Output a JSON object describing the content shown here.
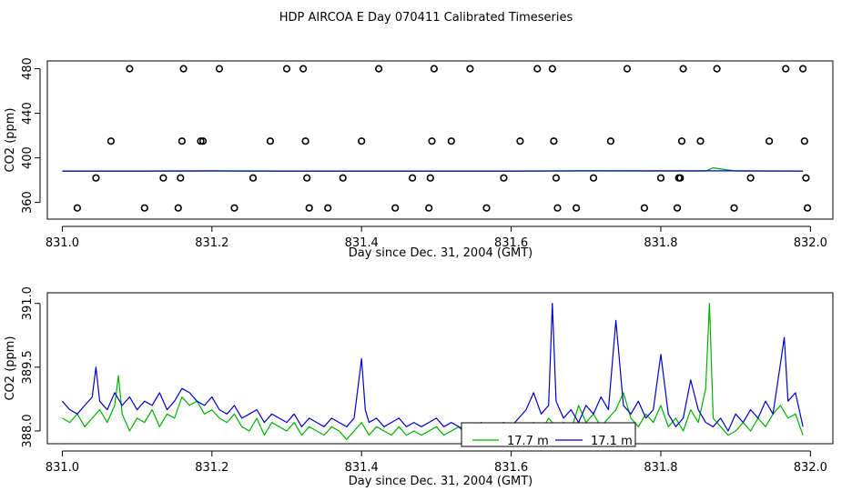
{
  "figure": {
    "title": "HDP AIRCOA E  Day 070411  Calibrated Timeseries"
  },
  "colors": {
    "green": "#00b000",
    "blue": "#0000cc",
    "black": "#000000"
  },
  "chart_data": [
    {
      "type": "scatter",
      "xlabel": "Day since Dec. 31, 2004 (GMT)",
      "ylabel": "CO2 (ppm)",
      "xlim": [
        830.98,
        832.03
      ],
      "ylim": [
        345,
        487
      ],
      "xticks": [
        831.0,
        831.2,
        831.4,
        831.6,
        831.8,
        832.0
      ],
      "xtick_labels": [
        "831.0",
        "831.2",
        "831.4",
        "831.6",
        "831.8",
        "832.0"
      ],
      "yticks": [
        360,
        400,
        440,
        480
      ],
      "ytick_labels": [
        "360",
        "400",
        "440",
        "480"
      ],
      "grid": false,
      "points": [
        [
          831.02,
          355
        ],
        [
          831.045,
          382
        ],
        [
          831.065,
          415
        ],
        [
          831.09,
          480
        ],
        [
          831.11,
          355
        ],
        [
          831.135,
          382
        ],
        [
          831.155,
          355
        ],
        [
          831.158,
          382
        ],
        [
          831.16,
          415
        ],
        [
          831.162,
          480
        ],
        [
          831.185,
          415
        ],
        [
          831.188,
          415
        ],
        [
          831.21,
          480
        ],
        [
          831.23,
          355
        ],
        [
          831.255,
          382
        ],
        [
          831.278,
          415
        ],
        [
          831.3,
          480
        ],
        [
          831.322,
          480
        ],
        [
          831.325,
          415
        ],
        [
          831.327,
          382
        ],
        [
          831.33,
          355
        ],
        [
          831.355,
          355
        ],
        [
          831.375,
          382
        ],
        [
          831.4,
          415
        ],
        [
          831.423,
          480
        ],
        [
          831.445,
          355
        ],
        [
          831.468,
          382
        ],
        [
          831.49,
          355
        ],
        [
          831.492,
          382
        ],
        [
          831.494,
          415
        ],
        [
          831.497,
          480
        ],
        [
          831.52,
          415
        ],
        [
          831.545,
          480
        ],
        [
          831.567,
          355
        ],
        [
          831.59,
          382
        ],
        [
          831.612,
          415
        ],
        [
          831.635,
          480
        ],
        [
          831.655,
          480
        ],
        [
          831.657,
          415
        ],
        [
          831.66,
          382
        ],
        [
          831.662,
          355
        ],
        [
          831.687,
          355
        ],
        [
          831.71,
          382
        ],
        [
          831.733,
          415
        ],
        [
          831.755,
          480
        ],
        [
          831.778,
          355
        ],
        [
          831.8,
          382
        ],
        [
          831.822,
          355
        ],
        [
          831.824,
          382
        ],
        [
          831.826,
          382
        ],
        [
          831.828,
          415
        ],
        [
          831.83,
          480
        ],
        [
          831.853,
          415
        ],
        [
          831.875,
          480
        ],
        [
          831.898,
          355
        ],
        [
          831.92,
          382
        ],
        [
          831.945,
          415
        ],
        [
          831.967,
          480
        ],
        [
          831.99,
          480
        ],
        [
          831.992,
          415
        ],
        [
          831.994,
          382
        ],
        [
          831.996,
          355
        ]
      ],
      "series": [
        {
          "color": "#00b000",
          "x": [
            831.0,
            831.1,
            831.2,
            831.3,
            831.4,
            831.5,
            831.6,
            831.7,
            831.8,
            831.86,
            831.87,
            831.9,
            831.99
          ],
          "values": [
            388.0,
            388.0,
            388.1,
            388.0,
            388.0,
            388.0,
            388.0,
            388.2,
            388.1,
            388.2,
            391.0,
            388.2,
            388.1
          ]
        },
        {
          "color": "#0000cc",
          "x": [
            831.0,
            831.1,
            831.2,
            831.3,
            831.4,
            831.5,
            831.6,
            831.7,
            831.8,
            831.9,
            831.99
          ],
          "values": [
            388.2,
            388.2,
            388.3,
            388.2,
            388.2,
            388.2,
            388.2,
            388.4,
            388.3,
            388.3,
            388.2
          ]
        }
      ]
    },
    {
      "type": "line",
      "xlabel": "Day since Dec. 31, 2004 (GMT)",
      "ylabel": "CO2 (ppm)",
      "xlim": [
        830.98,
        832.03
      ],
      "ylim": [
        387.7,
        391.25
      ],
      "xticks": [
        831.0,
        831.2,
        831.4,
        831.6,
        831.8,
        832.0
      ],
      "xtick_labels": [
        "831.0",
        "831.2",
        "831.4",
        "831.6",
        "831.8",
        "832.0"
      ],
      "yticks": [
        388.0,
        389.5,
        391.0
      ],
      "ytick_labels": [
        "388.0",
        "389.5",
        "391.0"
      ],
      "grid": false,
      "legend_position": "bottom-center",
      "series": [
        {
          "name": "17.7 m",
          "color": "#00b000",
          "x": [
            831.0,
            831.01,
            831.02,
            831.03,
            831.04,
            831.05,
            831.06,
            831.07,
            831.075,
            831.08,
            831.09,
            831.1,
            831.11,
            831.12,
            831.13,
            831.14,
            831.15,
            831.16,
            831.17,
            831.18,
            831.19,
            831.2,
            831.21,
            831.22,
            831.23,
            831.24,
            831.25,
            831.26,
            831.27,
            831.28,
            831.29,
            831.3,
            831.31,
            831.32,
            831.33,
            831.34,
            831.35,
            831.36,
            831.37,
            831.38,
            831.39,
            831.4,
            831.41,
            831.42,
            831.43,
            831.44,
            831.45,
            831.46,
            831.47,
            831.48,
            831.49,
            831.5,
            831.51,
            831.52,
            831.53,
            831.54,
            831.55,
            831.56,
            831.57,
            831.58,
            831.59,
            831.6,
            831.61,
            831.62,
            831.63,
            831.64,
            831.65,
            831.66,
            831.67,
            831.68,
            831.69,
            831.7,
            831.71,
            831.72,
            831.73,
            831.74,
            831.75,
            831.76,
            831.77,
            831.78,
            831.79,
            831.8,
            831.81,
            831.82,
            831.83,
            831.84,
            831.85,
            831.86,
            831.865,
            831.87,
            831.88,
            831.89,
            831.9,
            831.91,
            831.92,
            831.93,
            831.94,
            831.95,
            831.96,
            831.97,
            831.98,
            831.99
          ],
          "values": [
            388.3,
            388.2,
            388.4,
            388.1,
            388.3,
            388.5,
            388.2,
            388.6,
            389.3,
            388.4,
            388.0,
            388.3,
            388.2,
            388.5,
            388.1,
            388.4,
            388.3,
            388.8,
            388.6,
            388.7,
            388.4,
            388.5,
            388.3,
            388.2,
            388.4,
            388.1,
            388.0,
            388.3,
            387.9,
            388.2,
            388.1,
            388.0,
            388.2,
            387.9,
            388.1,
            388.0,
            387.9,
            388.1,
            388.0,
            387.8,
            388.0,
            388.2,
            387.9,
            388.1,
            388.0,
            387.9,
            388.1,
            387.9,
            388.0,
            387.9,
            388.0,
            388.1,
            387.9,
            388.0,
            388.1,
            387.9,
            388.0,
            388.1,
            387.9,
            388.0,
            388.1,
            387.9,
            388.0,
            388.1,
            388.2,
            388.0,
            388.3,
            388.1,
            388.2,
            388.0,
            388.6,
            388.2,
            388.4,
            388.1,
            388.3,
            388.5,
            388.9,
            388.3,
            388.1,
            388.4,
            388.2,
            388.6,
            388.1,
            388.3,
            388.0,
            388.5,
            388.2,
            389.0,
            391.0,
            388.3,
            388.1,
            387.9,
            388.0,
            388.2,
            388.0,
            388.3,
            388.1,
            388.4,
            388.6,
            388.3,
            388.4,
            387.9
          ]
        },
        {
          "name": "17.1 m",
          "color": "#0000cc",
          "x": [
            831.0,
            831.01,
            831.02,
            831.03,
            831.04,
            831.045,
            831.05,
            831.06,
            831.07,
            831.08,
            831.09,
            831.1,
            831.11,
            831.12,
            831.13,
            831.14,
            831.15,
            831.16,
            831.17,
            831.18,
            831.19,
            831.2,
            831.21,
            831.22,
            831.23,
            831.24,
            831.25,
            831.26,
            831.27,
            831.28,
            831.29,
            831.3,
            831.31,
            831.32,
            831.33,
            831.34,
            831.35,
            831.36,
            831.37,
            831.38,
            831.39,
            831.4,
            831.405,
            831.41,
            831.42,
            831.43,
            831.44,
            831.45,
            831.46,
            831.47,
            831.48,
            831.49,
            831.5,
            831.51,
            831.52,
            831.53,
            831.54,
            831.55,
            831.56,
            831.57,
            831.58,
            831.59,
            831.6,
            831.61,
            831.62,
            831.63,
            831.64,
            831.65,
            831.655,
            831.66,
            831.67,
            831.68,
            831.69,
            831.7,
            831.71,
            831.72,
            831.73,
            831.74,
            831.75,
            831.76,
            831.77,
            831.78,
            831.79,
            831.8,
            831.81,
            831.82,
            831.83,
            831.84,
            831.85,
            831.86,
            831.87,
            831.88,
            831.89,
            831.9,
            831.91,
            831.92,
            831.93,
            831.94,
            831.95,
            831.96,
            831.965,
            831.97,
            831.98,
            831.99
          ],
          "values": [
            388.7,
            388.5,
            388.4,
            388.6,
            388.8,
            389.5,
            388.7,
            388.5,
            388.9,
            388.6,
            388.8,
            388.5,
            388.7,
            388.6,
            388.9,
            388.5,
            388.7,
            389.0,
            388.9,
            388.7,
            388.6,
            388.8,
            388.5,
            388.4,
            388.6,
            388.3,
            388.4,
            388.5,
            388.2,
            388.4,
            388.3,
            388.2,
            388.4,
            388.1,
            388.3,
            388.2,
            388.1,
            388.3,
            388.2,
            388.1,
            388.3,
            389.7,
            388.5,
            388.2,
            388.3,
            388.1,
            388.2,
            388.3,
            388.1,
            388.2,
            388.1,
            388.2,
            388.3,
            388.1,
            388.2,
            388.1,
            388.0,
            388.1,
            388.2,
            388.0,
            388.1,
            388.2,
            388.1,
            388.3,
            388.5,
            388.9,
            388.4,
            388.6,
            391.0,
            388.7,
            388.3,
            388.5,
            388.2,
            388.6,
            388.4,
            388.8,
            388.5,
            390.6,
            388.6,
            388.4,
            388.7,
            388.3,
            388.5,
            389.8,
            388.4,
            388.1,
            388.3,
            389.2,
            388.5,
            388.2,
            388.1,
            388.3,
            388.0,
            388.4,
            388.2,
            388.5,
            388.3,
            388.7,
            388.4,
            389.6,
            390.2,
            388.7,
            388.9,
            388.1
          ]
        }
      ]
    }
  ]
}
